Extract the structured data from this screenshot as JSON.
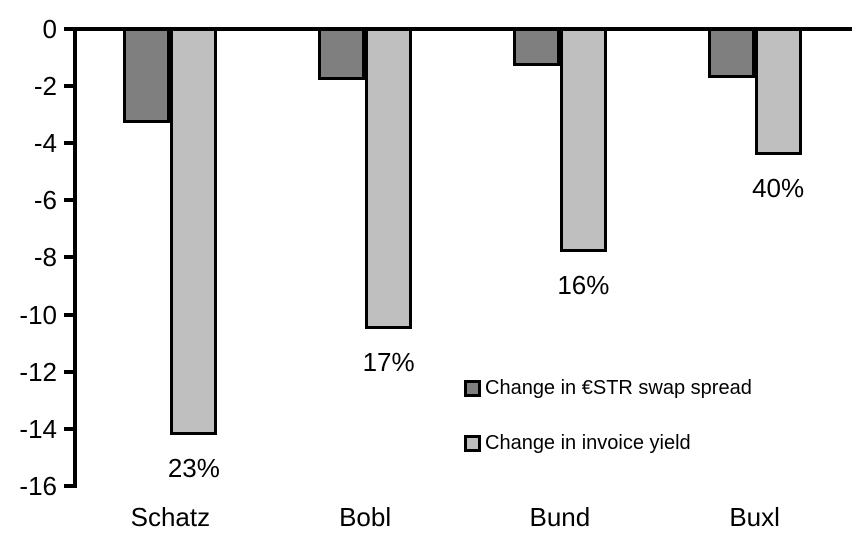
{
  "chart_data": {
    "type": "bar",
    "categories": [
      "Schatz",
      "Bobl",
      "Bund",
      "Buxl"
    ],
    "series": [
      {
        "name": "Change in €STR swap spread",
        "color": "#7f7f7f",
        "values": [
          -3.3,
          -1.8,
          -1.3,
          -1.7
        ]
      },
      {
        "name": "Change in invoice yield",
        "color": "#bfbfbf",
        "values": [
          -14.2,
          -10.5,
          -7.8,
          -4.4
        ],
        "point_labels": [
          "23%",
          "17%",
          "16%",
          "40%"
        ]
      }
    ],
    "yticks": [
      0,
      -2,
      -4,
      -6,
      -8,
      -10,
      -12,
      -14,
      -16
    ],
    "ylim": [
      -16,
      0
    ],
    "grid": false,
    "legend_position": "inside-right",
    "axis_color": "#000000",
    "background": "#ffffff"
  }
}
